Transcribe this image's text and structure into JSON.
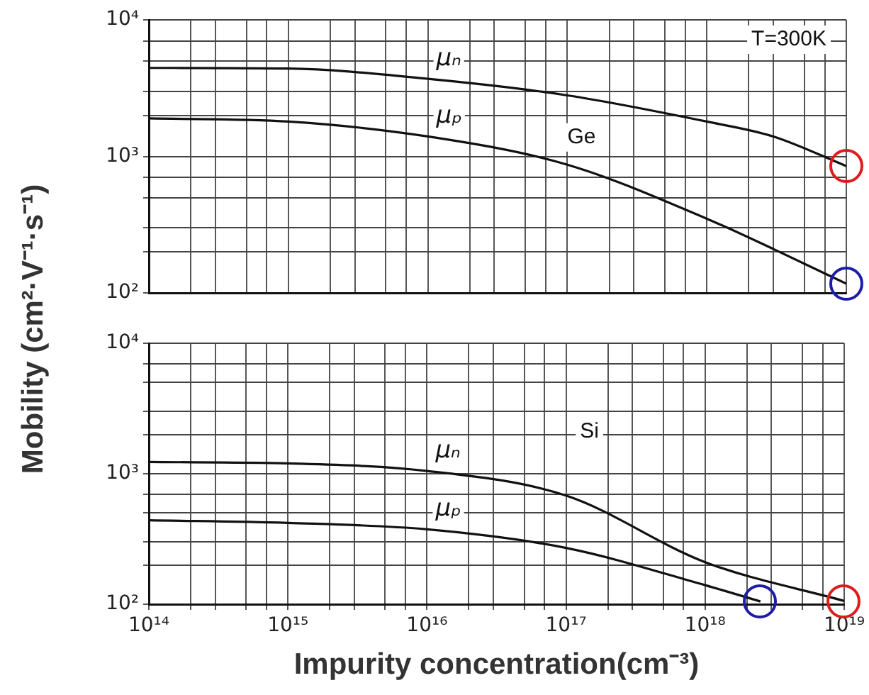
{
  "chart_data": [
    {
      "type": "line",
      "ylabel": "Mobility (cm²·V⁻¹·s⁻¹)",
      "log": "xy",
      "grid": true,
      "marker": "none",
      "line_style": "solid",
      "legend": false,
      "tick_labels": "y",
      "xlim": [
        100000000000000.0,
        1e+19
      ],
      "ylim": [
        100,
        10000
      ],
      "xticks": [
        {
          "value": 100000000000000.0,
          "label": null
        },
        {
          "value": 200000000000000.0,
          "label": null
        },
        {
          "value": 300000000000000.0,
          "label": null
        },
        {
          "value": 500000000000000.0,
          "label": null
        },
        {
          "value": 700000000000000.0,
          "label": null
        },
        {
          "value": 1000000000000000.0,
          "label": null
        },
        {
          "value": 2000000000000000.0,
          "label": null
        },
        {
          "value": 3000000000000000.0,
          "label": null
        },
        {
          "value": 5000000000000000.0,
          "label": null
        },
        {
          "value": 7000000000000000.0,
          "label": null
        },
        {
          "value": 1e+16,
          "label": null
        },
        {
          "value": 2e+16,
          "label": null
        },
        {
          "value": 3e+16,
          "label": null
        },
        {
          "value": 5e+16,
          "label": null
        },
        {
          "value": 7e+16,
          "label": null
        },
        {
          "value": 1e+17,
          "label": null
        },
        {
          "value": 2e+17,
          "label": null
        },
        {
          "value": 3e+17,
          "label": null
        },
        {
          "value": 5e+17,
          "label": null
        },
        {
          "value": 7e+17,
          "label": null
        },
        {
          "value": 1e+18,
          "label": null
        },
        {
          "value": 2e+18,
          "label": null
        },
        {
          "value": 3e+18,
          "label": null
        },
        {
          "value": 5e+18,
          "label": null
        },
        {
          "value": 7e+18,
          "label": null
        },
        {
          "value": 1e+19,
          "label": null
        }
      ],
      "yticks": [
        {
          "value": 100,
          "label": "10²"
        },
        {
          "value": 200,
          "label": null
        },
        {
          "value": 300,
          "label": null
        },
        {
          "value": 500,
          "label": null
        },
        {
          "value": 700,
          "label": null
        },
        {
          "value": 1000,
          "label": "10³"
        },
        {
          "value": 2000,
          "label": null
        },
        {
          "value": 3000,
          "label": null
        },
        {
          "value": 5000,
          "label": null
        },
        {
          "value": 7000,
          "label": null
        },
        {
          "value": 10000,
          "label": "10⁴"
        }
      ],
      "x": [
        100000000000000.0,
        1000000000000000.0,
        1e+16,
        1e+17,
        1e+18,
        3e+18,
        1e+19
      ],
      "series": [
        {
          "name": "μₙ",
          "color": "#111111",
          "values": [
            4450,
            4400,
            3700,
            2800,
            1800,
            1400,
            850
          ]
        },
        {
          "name": "μₚ",
          "color": "#111111",
          "values": [
            1900,
            1800,
            1400,
            870,
            350,
            210,
            117
          ]
        }
      ],
      "annotations": [
        "T=300K",
        "Ge"
      ]
    },
    {
      "type": "line",
      "xlabel": "Impurity concentration(cm⁻³)",
      "log": "xy",
      "grid": true,
      "marker": "none",
      "line_style": "solid",
      "legend": false,
      "xlim": [
        100000000000000.0,
        1e+19
      ],
      "ylim": [
        100,
        10000
      ],
      "xticks": [
        {
          "value": 100000000000000.0,
          "label": "10¹⁴"
        },
        {
          "value": 200000000000000.0,
          "label": null
        },
        {
          "value": 300000000000000.0,
          "label": null
        },
        {
          "value": 500000000000000.0,
          "label": null
        },
        {
          "value": 700000000000000.0,
          "label": null
        },
        {
          "value": 1000000000000000.0,
          "label": "10¹⁵"
        },
        {
          "value": 2000000000000000.0,
          "label": null
        },
        {
          "value": 3000000000000000.0,
          "label": null
        },
        {
          "value": 5000000000000000.0,
          "label": null
        },
        {
          "value": 7000000000000000.0,
          "label": null
        },
        {
          "value": 1e+16,
          "label": "10¹⁶"
        },
        {
          "value": 2e+16,
          "label": null
        },
        {
          "value": 3e+16,
          "label": null
        },
        {
          "value": 5e+16,
          "label": null
        },
        {
          "value": 7e+16,
          "label": null
        },
        {
          "value": 1e+17,
          "label": "10¹⁷"
        },
        {
          "value": 2e+17,
          "label": null
        },
        {
          "value": 3e+17,
          "label": null
        },
        {
          "value": 5e+17,
          "label": null
        },
        {
          "value": 7e+17,
          "label": null
        },
        {
          "value": 1e+18,
          "label": "10¹⁸"
        },
        {
          "value": 2e+18,
          "label": null
        },
        {
          "value": 3e+18,
          "label": null
        },
        {
          "value": 5e+18,
          "label": null
        },
        {
          "value": 7e+18,
          "label": null
        },
        {
          "value": 1e+19,
          "label": "10¹⁹"
        }
      ],
      "yticks": [
        {
          "value": 100,
          "label": "10²"
        },
        {
          "value": 200,
          "label": null
        },
        {
          "value": 300,
          "label": null
        },
        {
          "value": 500,
          "label": null
        },
        {
          "value": 700,
          "label": null
        },
        {
          "value": 1000,
          "label": "10³"
        },
        {
          "value": 2000,
          "label": null
        },
        {
          "value": 3000,
          "label": null
        },
        {
          "value": 5000,
          "label": null
        },
        {
          "value": 7000,
          "label": null
        },
        {
          "value": 10000,
          "label": "10⁴"
        }
      ],
      "series": [
        {
          "name": "μₙ",
          "color": "#111111",
          "x": [
            100000000000000.0,
            1000000000000000.0,
            1e+16,
            1e+17,
            1e+18,
            1e+19
          ],
          "values": [
            1230,
            1200,
            1050,
            680,
            210,
            106
          ]
        },
        {
          "name": "μₚ",
          "color": "#111111",
          "x": [
            100000000000000.0,
            1000000000000000.0,
            1e+16,
            1e+17,
            1e+18,
            2.5e+18
          ],
          "values": [
            440,
            420,
            375,
            270,
            140,
            105
          ]
        }
      ],
      "annotations": [
        "Si"
      ]
    }
  ]
}
